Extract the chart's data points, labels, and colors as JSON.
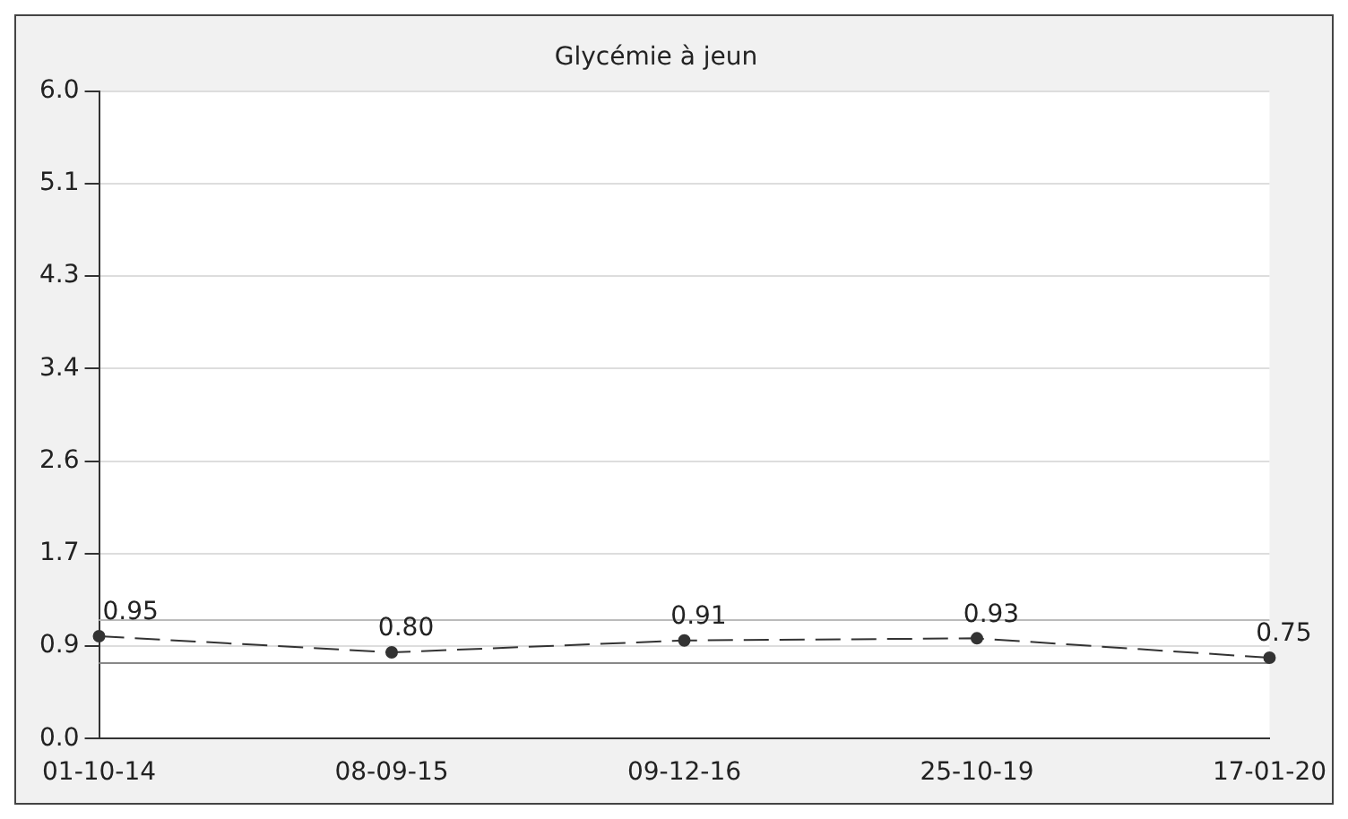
{
  "chart_data": {
    "type": "line",
    "title": "Glycémie à jeun",
    "categories": [
      "01-10-14",
      "08-09-15",
      "09-12-16",
      "25-10-19",
      "17-01-20"
    ],
    "series": [
      {
        "color": "#333333",
        "values": [
          0.95,
          0.8,
          0.91,
          0.93,
          0.75
        ],
        "value_labels": [
          "0.95",
          "0.80",
          "0.91",
          "0.93",
          "0.75"
        ]
      }
    ],
    "ylim": [
      0,
      6
    ],
    "yticks": [
      {
        "value": 0,
        "label": "0.0"
      },
      {
        "value": 0.857,
        "label": "0.9"
      },
      {
        "value": 1.714,
        "label": "1.7"
      },
      {
        "value": 2.571,
        "label": "2.6"
      },
      {
        "value": 3.429,
        "label": "3.4"
      },
      {
        "value": 4.286,
        "label": "4.3"
      },
      {
        "value": 5.143,
        "label": "5.1"
      },
      {
        "value": 6,
        "label": "6.0"
      }
    ],
    "ref_lines": [
      {
        "axis": "y",
        "value": 1.1,
        "color": "#bbbbbb"
      },
      {
        "axis": "y",
        "value": 0.7,
        "color": "#888888"
      }
    ],
    "grid": "y",
    "legend": false,
    "marker": "circle",
    "line_style": "dashed"
  }
}
